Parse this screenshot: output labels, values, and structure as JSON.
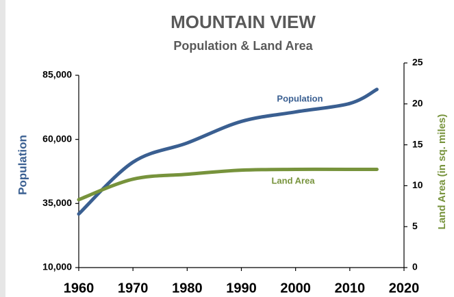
{
  "chart_data": {
    "type": "line",
    "title": "MOUNTAIN VIEW",
    "subtitle": "Population & Land Area",
    "y_label": "Population",
    "y2_label": "Land Area (in sq. miles)",
    "x": [
      1960,
      1970,
      1980,
      1990,
      2000,
      2010,
      2015
    ],
    "xlim": [
      1960,
      2020
    ],
    "xticks": [
      1960,
      1970,
      1980,
      1990,
      2000,
      2010,
      2020
    ],
    "ylim": [
      10000,
      85000
    ],
    "yticks": [
      {
        "value": 10000,
        "label": "10,000"
      },
      {
        "value": 35000,
        "label": "35,000"
      },
      {
        "value": 60000,
        "label": "60,000"
      },
      {
        "value": 85000,
        "label": "85,000"
      }
    ],
    "y2lim": [
      0,
      25
    ],
    "y2ticks": [
      0,
      5,
      10,
      15,
      20,
      25
    ],
    "grid": false,
    "series": [
      {
        "name": "Population",
        "color": "#3a5f91",
        "values": [
          30900,
          51100,
          58600,
          67000,
          70700,
          74000,
          79500
        ]
      },
      {
        "name": "Land Area",
        "color": "#77933c",
        "axis": "y2",
        "values": [
          8.3,
          10.8,
          11.4,
          11.9,
          12.0,
          12.0,
          12.0
        ]
      }
    ]
  }
}
